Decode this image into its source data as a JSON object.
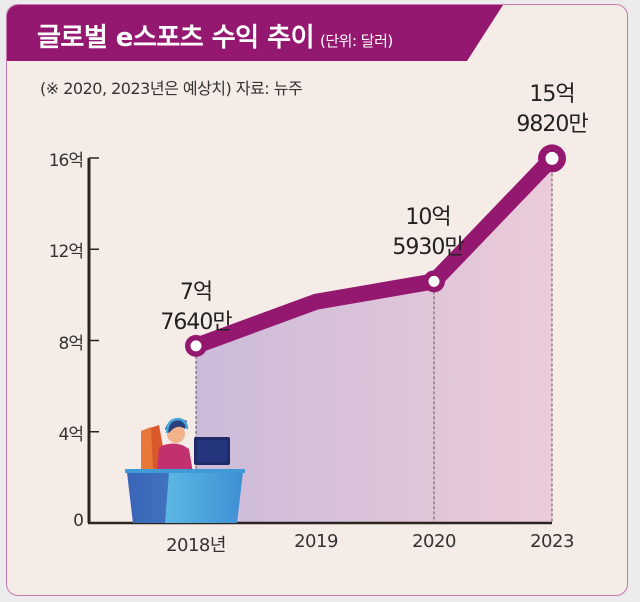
{
  "header": {
    "title": "글로벌 e스포츠 수익 추이",
    "unit": "(단위: 달러)",
    "note": "(※ 2020, 2023년은 예상치)  자료: 뉴주"
  },
  "colors": {
    "accent": "#951870",
    "background": "#f6ece7",
    "border": "#c47ab0",
    "area_start": "#cbbbd9",
    "area_end": "#ebcbd9"
  },
  "chart_data": {
    "type": "area",
    "title": "글로벌 e스포츠 수익 추이",
    "unit_label": "(단위: 달러)",
    "xlabel": "",
    "ylabel": "",
    "categories": [
      "2018년",
      "2019",
      "2020",
      "2023"
    ],
    "values_in_eok": [
      7.764,
      9.7,
      10.593,
      15.982
    ],
    "ylim": [
      0,
      16
    ],
    "yticks": [
      {
        "value": 0,
        "label": "0"
      },
      {
        "value": 4,
        "label": "4억"
      },
      {
        "value": 8,
        "label": "8억"
      },
      {
        "value": 12,
        "label": "12억"
      },
      {
        "value": 16,
        "label": "16억"
      }
    ],
    "data_labels": [
      {
        "index": 0,
        "line1": "7억",
        "line2": "7640만"
      },
      {
        "index": 2,
        "line1": "10억",
        "line2": "5930만"
      },
      {
        "index": 3,
        "line1": "15억",
        "line2": "9820만"
      }
    ],
    "grid": false,
    "legend": "none"
  }
}
